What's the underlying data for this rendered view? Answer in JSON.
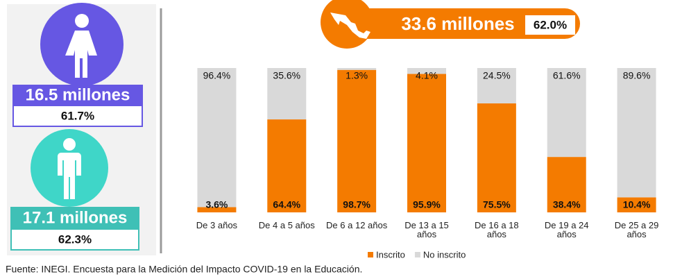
{
  "chart_data": {
    "type": "stacked_bar",
    "categories": [
      "De 3 años",
      "De 4 a 5 años",
      "De 6 a 12 años",
      "De 13 a 15 años",
      "De 16 a 18 años",
      "De 19 a 24 años",
      "De 25 a 29 años"
    ],
    "series": [
      {
        "name": "Inscrito",
        "color": "#f47b00",
        "values": [
          3.6,
          64.4,
          98.7,
          95.9,
          75.5,
          38.4,
          10.4
        ],
        "value_labels": [
          "3.6%",
          "64.4%",
          "98.7%",
          "95.9%",
          "75.5%",
          "38.4%",
          "10.4%"
        ]
      },
      {
        "name": "No inscrito",
        "color": "#d9d9d9",
        "values": [
          96.4,
          35.6,
          1.3,
          4.1,
          24.5,
          61.6,
          89.6
        ],
        "value_labels": [
          "96.4%",
          "35.6%",
          "1.3%",
          "4.1%",
          "24.5%",
          "61.6%",
          "89.6%"
        ]
      }
    ],
    "ylim": [
      0,
      100
    ],
    "legend": "bottom",
    "annotations": {
      "total": "33.6 millones",
      "total_share": "62.0%",
      "women": "16.5 millones",
      "women_share": "61.7%",
      "men": "17.1 millones",
      "men_share": "62.3%"
    },
    "source": "Fuente: INEGI. Encuesta para la Medición del Impacto COVID-19 en la Educación."
  }
}
